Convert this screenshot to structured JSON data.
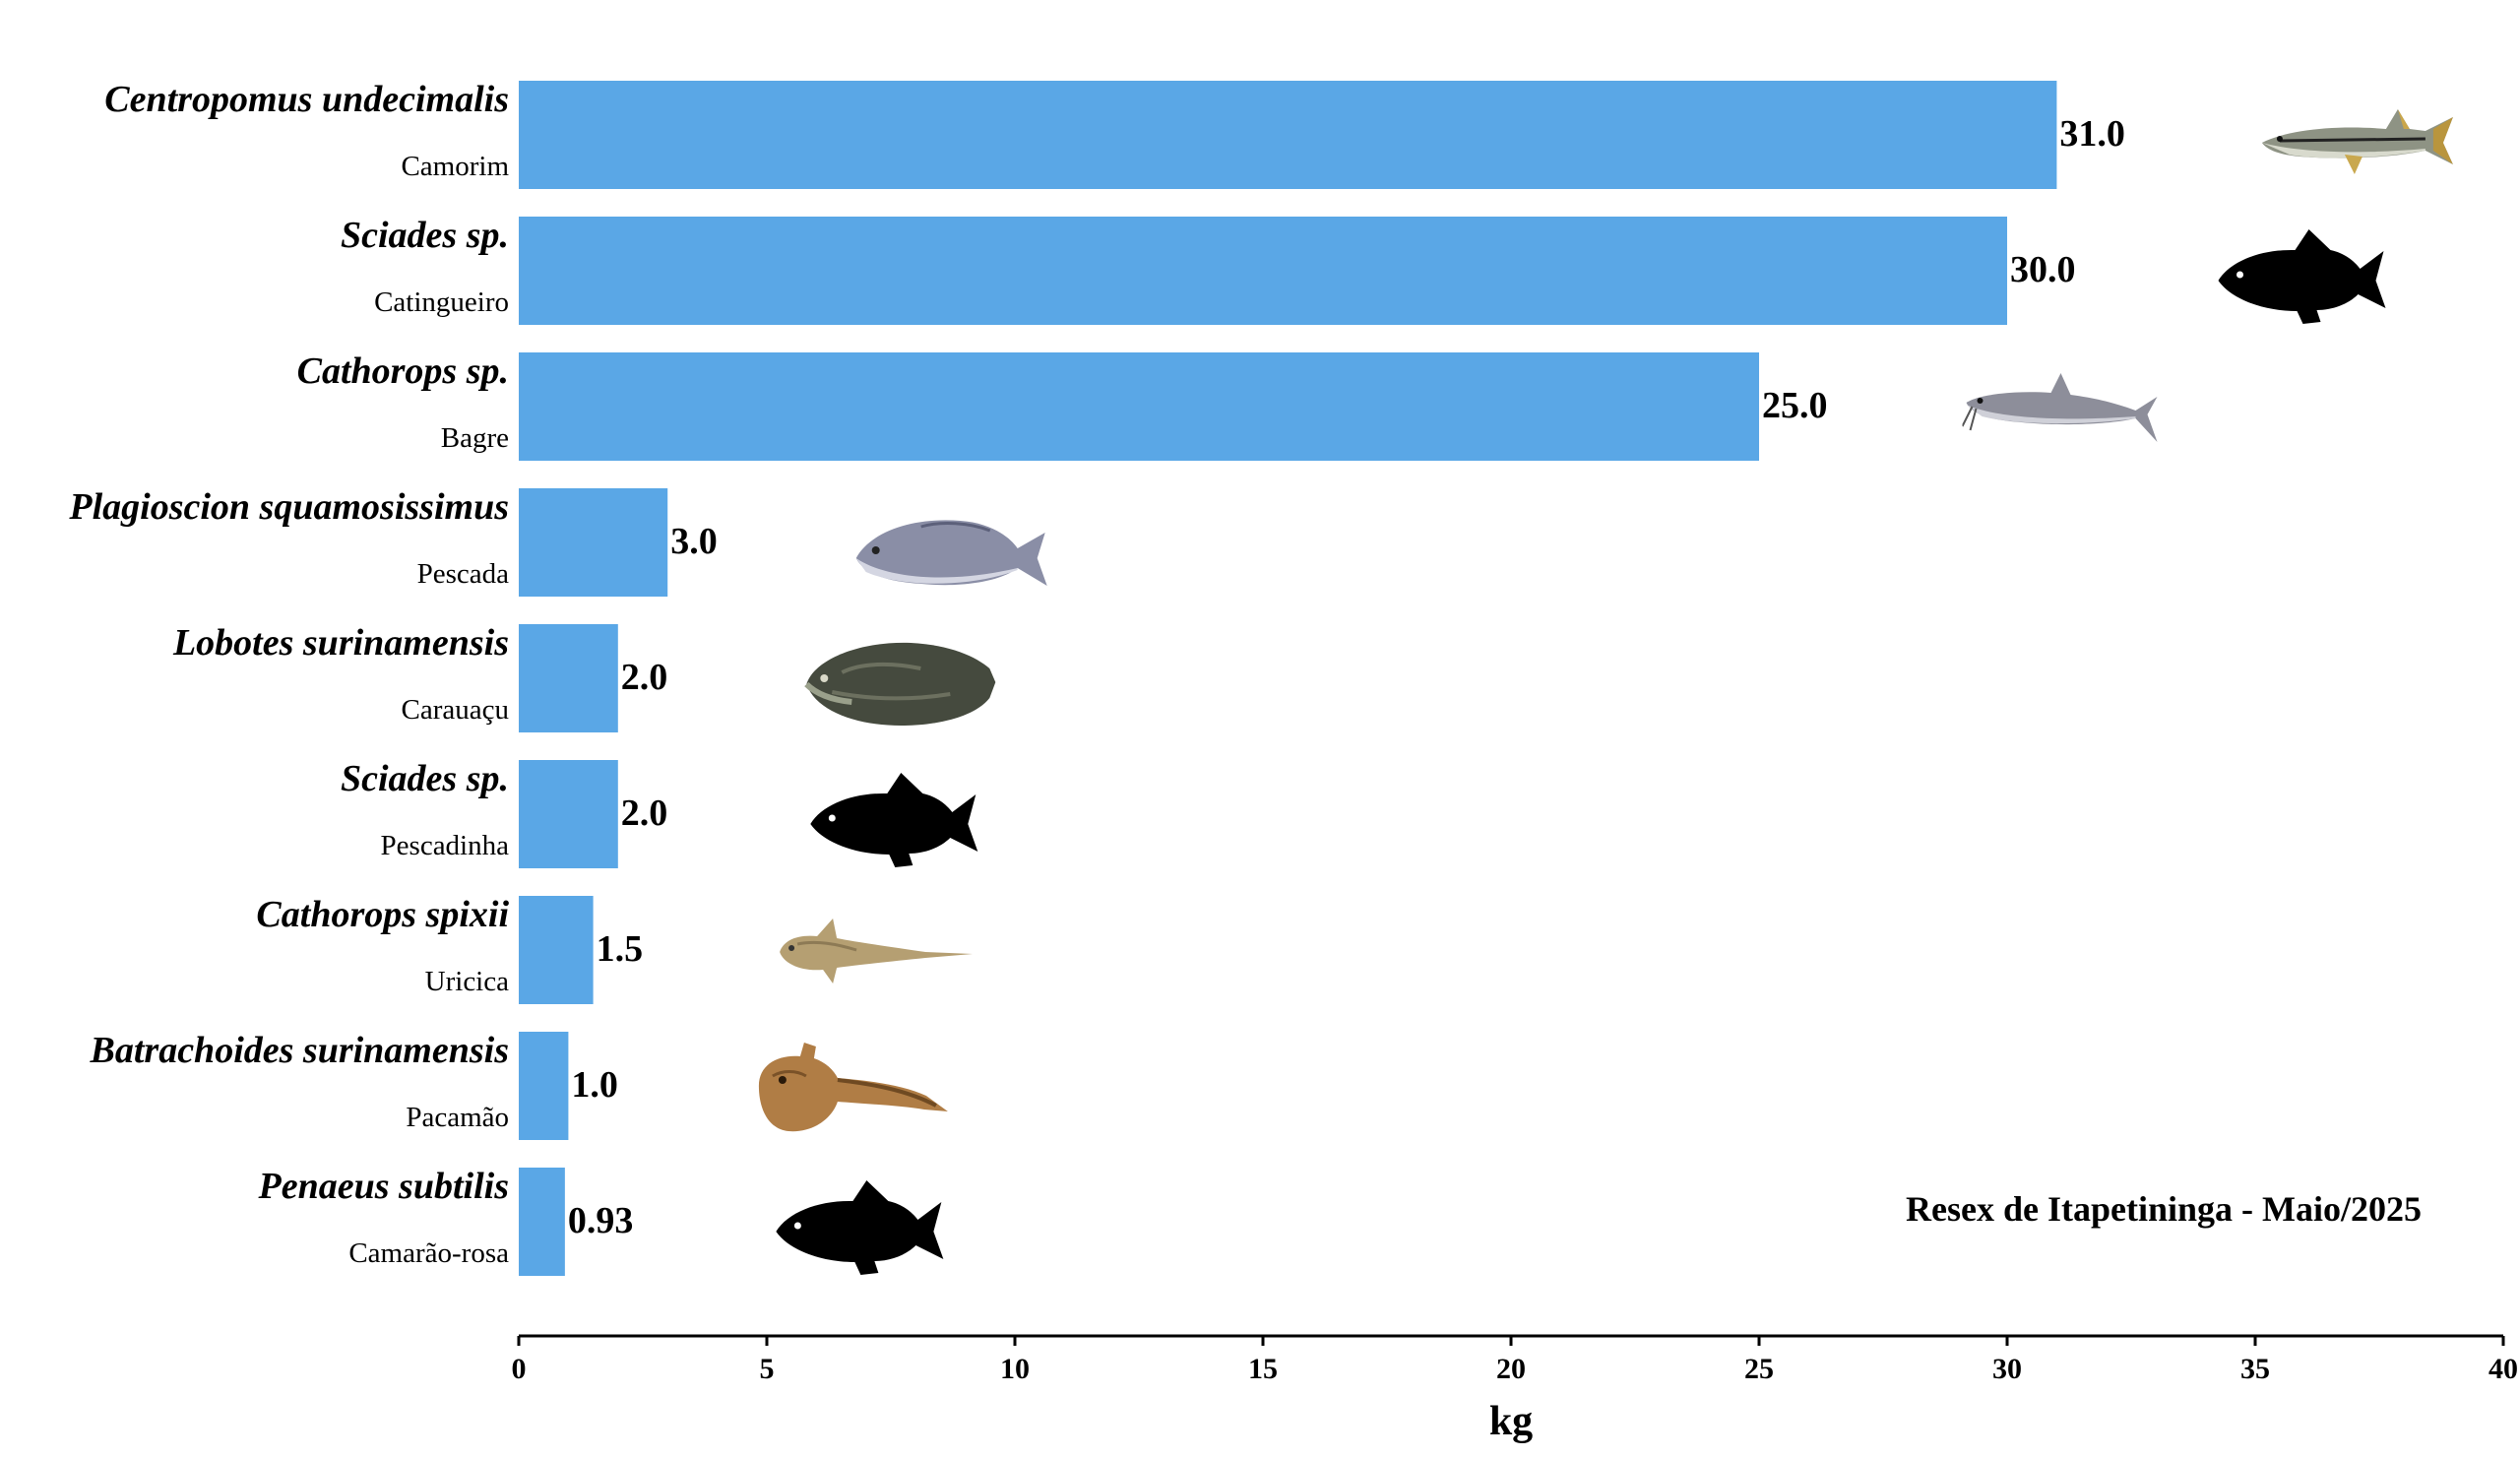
{
  "chart_data": {
    "type": "bar",
    "orientation": "horizontal",
    "xlabel": "kg",
    "xlim": [
      0,
      40
    ],
    "xticks": [
      0,
      5,
      10,
      15,
      20,
      25,
      30,
      35,
      40
    ],
    "grid": false,
    "bar_color": "#5aa7e6",
    "annotation": "Resex de Itapetininga - Maio/2025",
    "categories": [
      {
        "scientific": "Centropomus undecimalis",
        "common": "Camorim",
        "value": 31.0,
        "label": "31.0",
        "icon": "snook-fish-photo"
      },
      {
        "scientific": "Sciades sp.",
        "common": "Catingueiro",
        "value": 30.0,
        "label": "30.0",
        "icon": "fish-silhouette"
      },
      {
        "scientific": "Cathorops sp.",
        "common": "Bagre",
        "value": 25.0,
        "label": "25.0",
        "icon": "catfish-photo"
      },
      {
        "scientific": "Plagioscion squamosissimus",
        "common": "Pescada",
        "value": 3.0,
        "label": "3.0",
        "icon": "croaker-fish-photo"
      },
      {
        "scientific": "Lobotes surinamensis",
        "common": "Carauaçu",
        "value": 2.0,
        "label": "2.0",
        "icon": "tripletail-fish-photo"
      },
      {
        "scientific": "Sciades sp.",
        "common": "Pescadinha",
        "value": 2.0,
        "label": "2.0",
        "icon": "fish-silhouette"
      },
      {
        "scientific": "Cathorops spixii",
        "common": "Uricica",
        "value": 1.5,
        "label": "1.5",
        "icon": "small-catfish-photo"
      },
      {
        "scientific": "Batrachoides surinamensis",
        "common": "Pacamão",
        "value": 1.0,
        "label": "1.0",
        "icon": "toadfish-photo"
      },
      {
        "scientific": "Penaeus subtilis",
        "common": "Camarão-rosa",
        "value": 0.93,
        "label": "0.93",
        "icon": "fish-silhouette"
      }
    ]
  }
}
